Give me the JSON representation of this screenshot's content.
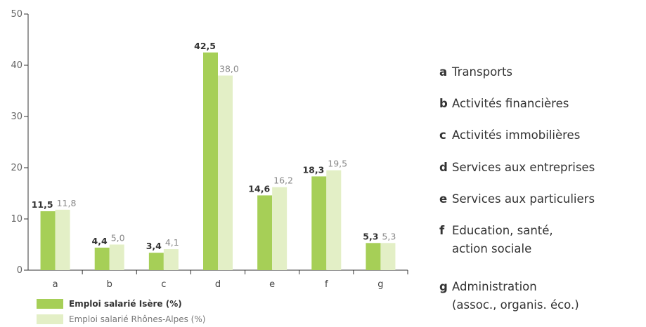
{
  "chart_data": {
    "type": "bar",
    "categories": [
      "a",
      "b",
      "c",
      "d",
      "e",
      "f",
      "g"
    ],
    "series": [
      {
        "name": "Emploi salarié Isère (%)",
        "values": [
          11.5,
          4.4,
          3.4,
          42.5,
          14.6,
          18.3,
          5.3
        ],
        "labels": [
          "11,5",
          "4,4",
          "3,4",
          "42,5",
          "14,6",
          "18,3",
          "5,3"
        ]
      },
      {
        "name": "Emploi salarié Rhônes-Alpes (%)",
        "values": [
          11.8,
          5.0,
          4.1,
          38.0,
          16.2,
          19.5,
          5.3
        ],
        "labels": [
          "11,8",
          "5,0",
          "4,1",
          "38,0",
          "16,2",
          "19,5",
          "5,3"
        ]
      }
    ],
    "ylim": [
      0,
      50
    ],
    "yticks": [
      0,
      10,
      20,
      30,
      40,
      50
    ],
    "colors": [
      "#a6cf57",
      "#e3efc6"
    ],
    "grid": false,
    "legend_position": "bottom-left"
  },
  "key": [
    {
      "letter": "a",
      "lines": [
        "Transports"
      ]
    },
    {
      "letter": "b",
      "lines": [
        "Activités financières"
      ]
    },
    {
      "letter": "c",
      "lines": [
        "Activités immobilières"
      ]
    },
    {
      "letter": "d",
      "lines": [
        "Services aux entreprises"
      ]
    },
    {
      "letter": "e",
      "lines": [
        "Services aux particuliers"
      ]
    },
    {
      "letter": "f",
      "lines": [
        "Education, santé,",
        "action sociale"
      ]
    },
    {
      "letter": "g",
      "lines": [
        "Administration",
        "(assoc., organis. éco.)"
      ]
    }
  ]
}
